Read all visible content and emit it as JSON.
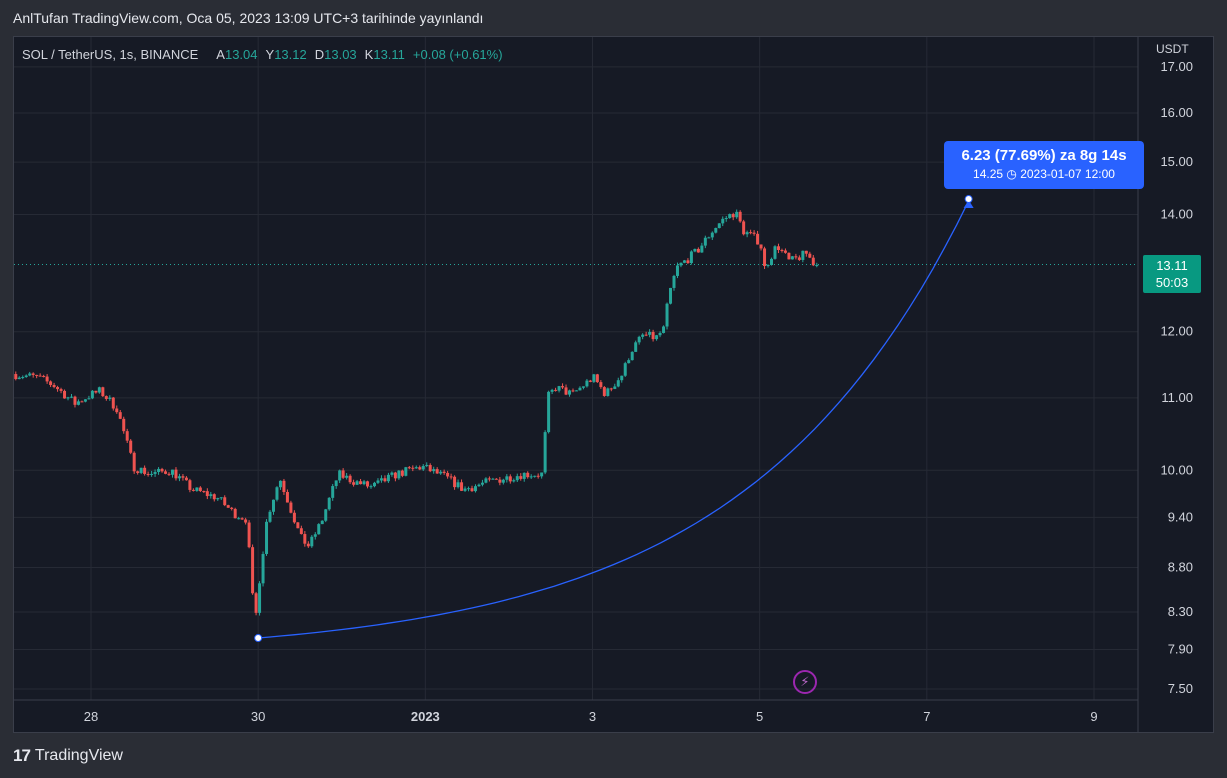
{
  "header": {
    "title": "AnlTufan TradingView.com, Oca 05, 2023 13:09 UTC+3 tarihinde yayınlandı"
  },
  "legend": {
    "symbol": "SOL / TetherUS, 1s, BINANCE",
    "open_label": "A",
    "open": "13.04",
    "high_label": "Y",
    "high": "13.12",
    "low_label": "D",
    "low": "13.03",
    "close_label": "K",
    "close": "13.11",
    "change": "+0.08 (+0.61%)"
  },
  "price_axis": {
    "currency": "USDT"
  },
  "last_price": {
    "price": "13.11",
    "countdown": "50:03"
  },
  "projection": {
    "headline": "6.23 (77.69%) za 8g 14s",
    "detail": "14.25 ◷ 2023-01-07  12:00"
  },
  "footer": {
    "brand": "TradingView",
    "logo_mark": "17"
  },
  "colors": {
    "up": "#26a69a",
    "down": "#ef5350",
    "projection": "#2962ff",
    "background": "#161a25",
    "grid": "#262a35",
    "price_tag": "#089981"
  },
  "icons": {
    "flash": "lightning-icon"
  },
  "chart_data": {
    "type": "candlestick",
    "scale": "log",
    "y_ticks": [
      17.0,
      16.0,
      15.0,
      14.0,
      12.0,
      11.0,
      10.0,
      9.4,
      8.8,
      8.3,
      7.9,
      7.5
    ],
    "x_ticks": [
      {
        "label": "28",
        "day": 28
      },
      {
        "label": "30",
        "day": 30
      },
      {
        "label": "2023",
        "day": 32
      },
      {
        "label": "3",
        "day": 34
      },
      {
        "label": "5",
        "day": 36
      },
      {
        "label": "7",
        "day": 38
      },
      {
        "label": "9",
        "day": 40
      }
    ],
    "price_path": [
      [
        27.1,
        11.35
      ],
      [
        27.4,
        11.3
      ],
      [
        27.6,
        11.18
      ],
      [
        27.85,
        10.92
      ],
      [
        28.05,
        11.05
      ],
      [
        28.15,
        11.1
      ],
      [
        28.35,
        10.85
      ],
      [
        28.55,
        10.05
      ],
      [
        28.75,
        9.95
      ],
      [
        29.0,
        10.0
      ],
      [
        29.25,
        9.75
      ],
      [
        29.55,
        9.65
      ],
      [
        29.75,
        9.45
      ],
      [
        29.9,
        9.38
      ],
      [
        29.95,
        8.8
      ],
      [
        30.0,
        8.12
      ],
      [
        30.05,
        8.6
      ],
      [
        30.15,
        9.4
      ],
      [
        30.3,
        9.9
      ],
      [
        30.55,
        9.15
      ],
      [
        30.65,
        9.05
      ],
      [
        30.8,
        9.35
      ],
      [
        31.0,
        9.95
      ],
      [
        31.2,
        9.85
      ],
      [
        31.4,
        9.78
      ],
      [
        31.7,
        9.95
      ],
      [
        32.0,
        10.05
      ],
      [
        32.3,
        9.9
      ],
      [
        32.5,
        9.75
      ],
      [
        32.8,
        9.85
      ],
      [
        33.2,
        9.95
      ],
      [
        33.45,
        9.95
      ],
      [
        33.5,
        11.0
      ],
      [
        33.6,
        11.15
      ],
      [
        33.8,
        11.05
      ],
      [
        34.05,
        11.3
      ],
      [
        34.2,
        11.05
      ],
      [
        34.4,
        11.35
      ],
      [
        34.5,
        11.7
      ],
      [
        34.65,
        11.95
      ],
      [
        34.8,
        11.9
      ],
      [
        34.9,
        12.05
      ],
      [
        34.95,
        12.55
      ],
      [
        35.05,
        13.05
      ],
      [
        35.3,
        13.35
      ],
      [
        35.5,
        13.75
      ],
      [
        35.6,
        13.9
      ],
      [
        35.75,
        14.05
      ],
      [
        35.85,
        13.7
      ],
      [
        36.05,
        13.5
      ],
      [
        36.1,
        13.05
      ],
      [
        36.25,
        13.45
      ],
      [
        36.4,
        13.15
      ],
      [
        36.6,
        13.3
      ],
      [
        36.7,
        13.11
      ]
    ],
    "last_price": 13.11,
    "projection": {
      "start_day": 30.0,
      "start_price": 8.02,
      "end_day": 38.5,
      "end_price": 14.25
    }
  }
}
